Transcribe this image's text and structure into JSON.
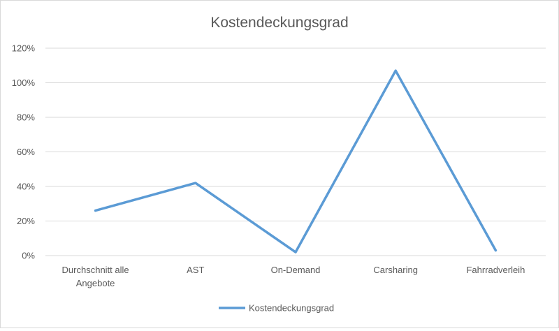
{
  "chart_data": {
    "type": "line",
    "title": "Kostendeckungsgrad",
    "categories": [
      [
        "Durchschnitt alle",
        "Angebote"
      ],
      [
        "AST"
      ],
      [
        "On-Demand"
      ],
      [
        "Carsharing"
      ],
      [
        "Fahrradverleih"
      ]
    ],
    "series": [
      {
        "name": "Kostendeckungsgrad",
        "values": [
          26,
          42,
          2,
          107,
          3
        ],
        "color": "#5b9bd5"
      }
    ],
    "yticks": [
      "0%",
      "20%",
      "40%",
      "60%",
      "80%",
      "100%",
      "120%"
    ],
    "ylim": [
      0,
      120
    ],
    "ytick_step": 20,
    "grid": true,
    "legend_position": "bottom",
    "xlabel": "",
    "ylabel": ""
  }
}
